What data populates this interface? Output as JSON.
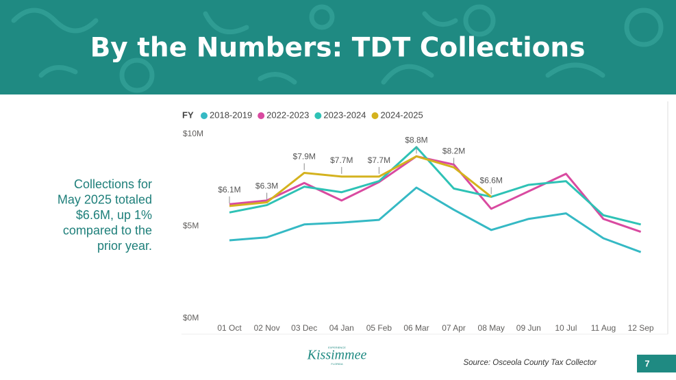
{
  "title": "By the Numbers: TDT Collections",
  "summary": [
    "Collections for",
    "May 2025 totaled",
    "$6.6M, up 1%",
    "compared to the",
    "prior year."
  ],
  "footer": {
    "source": "Source: Osceola County Tax Collector",
    "page": "7",
    "logo": [
      "EXPERIENCE",
      "Kissimmee",
      "FLORIDA"
    ]
  },
  "chart_data": {
    "type": "line",
    "legend_title": "FY",
    "categories": [
      "01 Oct",
      "02 Nov",
      "03 Dec",
      "04 Jan",
      "05 Feb",
      "06 Mar",
      "07 Apr",
      "08 May",
      "09 Jun",
      "10 Jul",
      "11 Aug",
      "12 Sep"
    ],
    "ylim": [
      0,
      10
    ],
    "yticks": [
      {
        "value": 0,
        "label": "$0M"
      },
      {
        "value": 5,
        "label": "$5M"
      },
      {
        "value": 10,
        "label": "$10M"
      }
    ],
    "grid": false,
    "series": [
      {
        "name": "2018-2019",
        "color": "#35b9c4",
        "values": [
          4.24,
          4.4,
          5.1,
          5.2,
          5.35,
          7.1,
          5.9,
          4.8,
          5.4,
          5.7,
          4.35,
          3.6
        ]
      },
      {
        "name": "2022-2023",
        "color": "#d94aa0",
        "values": [
          6.2,
          6.4,
          7.35,
          6.4,
          7.4,
          8.8,
          8.35,
          5.95,
          6.9,
          7.85,
          5.4,
          4.7
        ]
      },
      {
        "name": "2023-2024",
        "color": "#2ec2b5",
        "values": [
          5.75,
          6.15,
          7.15,
          6.85,
          7.45,
          9.3,
          7.05,
          6.6,
          7.25,
          7.45,
          5.6,
          5.1
        ]
      },
      {
        "name": "2024-2025",
        "color": "#d4b21e",
        "values": [
          6.1,
          6.3,
          7.9,
          7.7,
          7.7,
          8.8,
          8.2,
          6.6,
          null,
          null,
          null,
          null
        ],
        "value_labels": [
          "$6.1M",
          "$6.3M",
          "$7.9M",
          "$7.7M",
          "$7.7M",
          "$8.8M",
          "$8.2M",
          "$6.6M",
          null,
          null,
          null,
          null
        ]
      }
    ]
  }
}
